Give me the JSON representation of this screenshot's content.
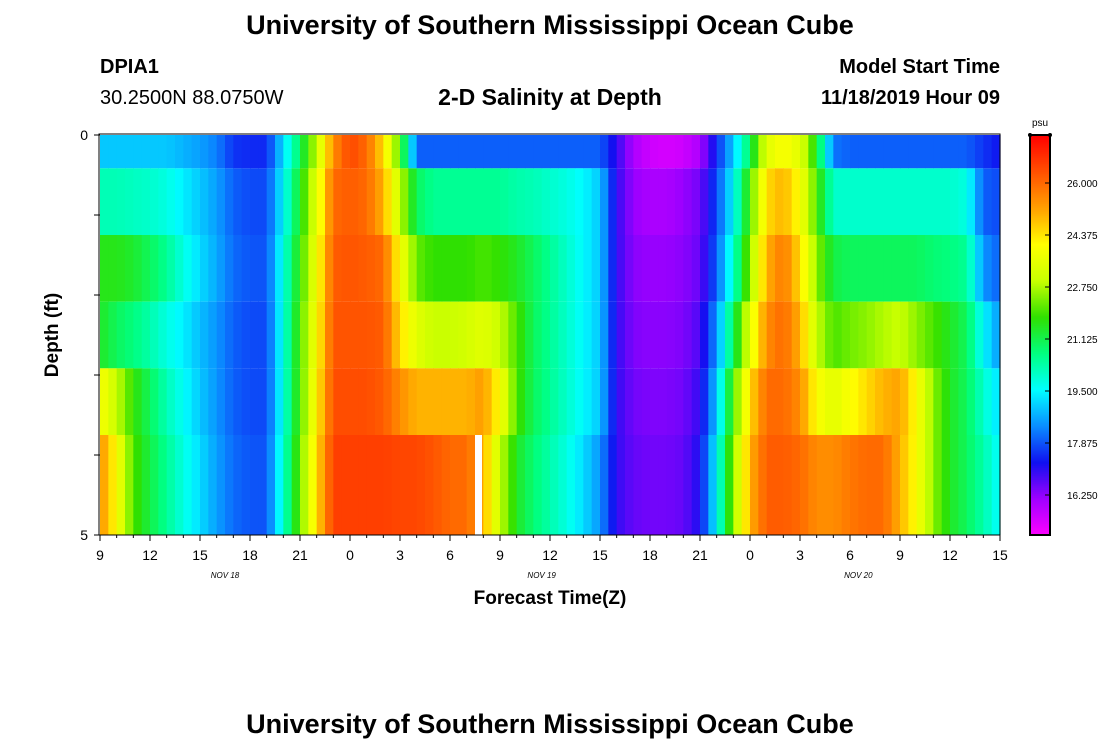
{
  "header": {
    "title": "University of Southern Mississippi Ocean Cube",
    "station": "DPIA1",
    "coords": "30.2500N 88.0750W",
    "subtitle": "2-D Salinity at Depth",
    "start_label": "Model Start Time",
    "start_time": "11/18/2019 Hour 09"
  },
  "footer": {
    "title": "University of Southern Mississippi Ocean Cube"
  },
  "colors": {
    "colormap": [
      "#ff00ff",
      "#a000ff",
      "#1010f0",
      "#0a8cff",
      "#00ffff",
      "#00ff80",
      "#30e000",
      "#c8ff00",
      "#ffff00",
      "#ffa000",
      "#ff5000",
      "#ff0000"
    ],
    "gap": "#ffffff"
  },
  "chart_data": {
    "type": "heatmap",
    "title": "2-D Salinity at Depth",
    "xlabel": "Forecast Time(Z)",
    "ylabel": "Depth (ft)",
    "x_tick_labels": [
      "9",
      "12",
      "15",
      "18",
      "21",
      "0",
      "3",
      "6",
      "9",
      "12",
      "15",
      "18",
      "21",
      "0",
      "3",
      "6",
      "9",
      "12",
      "15"
    ],
    "x_tick_hours": [
      9,
      12,
      15,
      18,
      21,
      24,
      27,
      30,
      33,
      36,
      39,
      42,
      45,
      48,
      51,
      54,
      57,
      60,
      63
    ],
    "date_labels": [
      {
        "text": "NOV 18",
        "hour": 16.5
      },
      {
        "text": "NOV 19",
        "hour": 35.5
      },
      {
        "text": "NOV 20",
        "hour": 54.5
      }
    ],
    "x_range_hours": [
      9,
      63
    ],
    "y_tick_labels": [
      "0",
      "5"
    ],
    "ylim": [
      0,
      5
    ],
    "depth_levels": [
      0,
      1,
      2,
      3,
      4,
      5
    ],
    "colorbar": {
      "unit": "psu",
      "range": [
        15,
        27.5
      ],
      "tick_labels": [
        "26.000",
        "24.375",
        "22.750",
        "21.125",
        "19.500",
        "17.875",
        "16.250"
      ],
      "tick_values": [
        26.0,
        24.375,
        22.75,
        21.125,
        19.5,
        17.875,
        16.25
      ]
    },
    "missing_value_hour": 31.5,
    "missing_value_depth_level": 5,
    "anchors_hours": [
      9,
      10,
      11,
      12,
      13,
      14,
      15,
      16,
      17,
      18,
      19,
      20,
      21,
      22,
      23,
      24,
      25,
      26,
      27,
      28,
      29,
      30,
      31,
      32,
      33,
      34,
      35,
      36,
      37,
      38,
      39,
      40,
      41,
      42,
      43,
      44,
      45,
      46,
      47,
      48,
      49,
      50,
      51,
      52,
      53,
      54,
      55,
      56,
      57,
      58,
      59,
      60,
      61,
      62,
      63
    ],
    "series": [
      {
        "name": "0 ft",
        "values": [
          19.0,
          19.0,
          19.0,
          19.0,
          19.0,
          18.8,
          18.6,
          18.3,
          17.6,
          17.5,
          17.5,
          19.2,
          21.0,
          23.0,
          25.5,
          26.5,
          26.0,
          24.5,
          22.0,
          18.0,
          18.0,
          18.0,
          18.0,
          18.0,
          18.0,
          18.0,
          18.0,
          18.0,
          18.0,
          18.0,
          18.0,
          17.0,
          16.0,
          15.6,
          15.5,
          15.6,
          16.0,
          17.5,
          19.0,
          21.0,
          23.5,
          24.0,
          23.5,
          21.5,
          18.2,
          18.0,
          18.0,
          18.0,
          18.0,
          18.0,
          18.0,
          18.0,
          18.0,
          17.6,
          17.3
        ]
      },
      {
        "name": "1 ft",
        "values": [
          20.2,
          20.2,
          20.1,
          20.0,
          19.8,
          19.4,
          19.0,
          18.6,
          18.0,
          17.8,
          17.8,
          19.5,
          21.5,
          23.5,
          26.0,
          26.2,
          26.0,
          25.0,
          23.0,
          21.0,
          20.5,
          20.5,
          20.5,
          20.5,
          20.5,
          20.3,
          20.2,
          20.0,
          19.8,
          19.5,
          19.0,
          17.0,
          16.2,
          16.0,
          16.0,
          16.2,
          16.5,
          17.8,
          19.5,
          22.0,
          24.5,
          25.0,
          24.0,
          22.0,
          20.0,
          20.0,
          20.0,
          20.0,
          20.0,
          20.0,
          20.0,
          20.0,
          19.8,
          18.0,
          17.8
        ]
      },
      {
        "name": "2 ft",
        "values": [
          21.6,
          21.6,
          21.4,
          21.0,
          20.5,
          19.8,
          19.2,
          18.7,
          18.1,
          17.9,
          17.9,
          19.8,
          21.8,
          23.8,
          26.2,
          26.3,
          26.2,
          26.0,
          24.0,
          22.2,
          21.8,
          21.8,
          21.8,
          22.0,
          21.8,
          21.5,
          21.0,
          20.5,
          20.0,
          19.5,
          19.0,
          17.0,
          16.3,
          16.2,
          16.2,
          16.3,
          16.6,
          18.0,
          20.0,
          22.5,
          25.0,
          25.8,
          24.5,
          22.5,
          21.2,
          21.0,
          21.0,
          21.0,
          21.0,
          21.0,
          20.8,
          20.7,
          20.5,
          18.5,
          18.0
        ]
      },
      {
        "name": "3 ft",
        "values": [
          21.5,
          21.0,
          20.7,
          20.3,
          19.8,
          19.4,
          18.9,
          18.5,
          18.0,
          17.8,
          17.8,
          19.8,
          22.0,
          24.0,
          26.3,
          26.3,
          26.3,
          26.2,
          24.5,
          23.5,
          23.0,
          23.0,
          23.2,
          23.5,
          23.0,
          22.0,
          21.0,
          20.5,
          20.0,
          19.5,
          19.0,
          17.0,
          16.4,
          16.3,
          16.3,
          16.4,
          16.8,
          18.5,
          21.0,
          23.5,
          25.5,
          26.0,
          25.0,
          23.0,
          22.0,
          22.3,
          22.5,
          22.8,
          23.0,
          22.5,
          22.0,
          21.5,
          21.0,
          19.5,
          18.5
        ]
      },
      {
        "name": "4 ft",
        "values": [
          24.0,
          23.0,
          21.8,
          21.0,
          20.2,
          19.6,
          19.0,
          18.5,
          18.0,
          17.8,
          17.8,
          19.8,
          22.0,
          24.2,
          26.4,
          26.4,
          26.4,
          26.2,
          25.5,
          25.0,
          25.0,
          25.0,
          25.0,
          25.3,
          24.0,
          22.0,
          21.0,
          20.5,
          20.0,
          19.5,
          19.0,
          17.0,
          16.5,
          16.4,
          16.4,
          16.5,
          17.0,
          19.0,
          22.0,
          24.5,
          26.0,
          26.0,
          25.5,
          24.0,
          23.5,
          24.0,
          24.5,
          25.0,
          25.2,
          24.0,
          22.5,
          21.5,
          21.0,
          20.0,
          19.2
        ]
      },
      {
        "name": "5 ft",
        "values": [
          25.5,
          24.0,
          22.0,
          21.2,
          20.5,
          19.8,
          19.2,
          18.6,
          18.1,
          17.9,
          17.9,
          20.0,
          22.2,
          24.5,
          26.6,
          26.6,
          26.6,
          26.6,
          26.5,
          26.5,
          26.3,
          26.0,
          26.0,
          25.0,
          23.0,
          21.5,
          20.8,
          20.3,
          19.8,
          19.2,
          18.5,
          17.0,
          16.6,
          16.5,
          16.5,
          16.6,
          17.2,
          19.5,
          22.5,
          25.0,
          26.2,
          26.2,
          26.0,
          25.5,
          25.5,
          25.8,
          26.0,
          26.0,
          25.0,
          24.0,
          22.5,
          21.5,
          21.0,
          20.3,
          19.5
        ]
      }
    ]
  }
}
